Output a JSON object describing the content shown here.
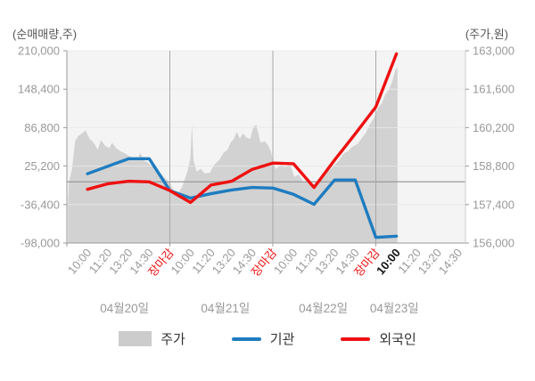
{
  "chart_data": {
    "type": "area+line",
    "title": "",
    "left_axis_label": "(순매매량,주)",
    "right_axis_label": "(주가,원)",
    "left_axis_ticks": [
      210000,
      148400,
      86800,
      25200,
      -36400,
      -98000
    ],
    "right_axis_ticks": [
      163000,
      161600,
      160200,
      158800,
      157400,
      156000
    ],
    "left_axis_range": [
      -98000,
      210000
    ],
    "right_axis_range": [
      156000,
      163000
    ],
    "grid": true,
    "legend_position": "bottom",
    "x_tick_labels": [
      {
        "label": "10:00",
        "slot": 1
      },
      {
        "label": "11:20",
        "slot": 2
      },
      {
        "label": "13:20",
        "slot": 3
      },
      {
        "label": "14:30",
        "slot": 4
      },
      {
        "label": "장마감",
        "slot": 5,
        "color": "#ee1111"
      },
      {
        "label": "10:00",
        "slot": 6
      },
      {
        "label": "11:20",
        "slot": 7
      },
      {
        "label": "13:20",
        "slot": 8
      },
      {
        "label": "14:30",
        "slot": 9
      },
      {
        "label": "장마감",
        "slot": 10,
        "color": "#ee1111"
      },
      {
        "label": "10:00",
        "slot": 11
      },
      {
        "label": "11:20",
        "slot": 12
      },
      {
        "label": "13:20",
        "slot": 13
      },
      {
        "label": "14:30",
        "slot": 14
      },
      {
        "label": "장마감",
        "slot": 15,
        "color": "#ee1111"
      },
      {
        "label": "10:00",
        "slot": 16,
        "color": "#111111",
        "bold": true
      },
      {
        "label": "11:20",
        "slot": 17
      },
      {
        "label": "13:20",
        "slot": 18
      },
      {
        "label": "14:30",
        "slot": 19
      }
    ],
    "day_labels": [
      {
        "label": "04월20일",
        "center_slot": 2.8
      },
      {
        "label": "04월21일",
        "center_slot": 7.7
      },
      {
        "label": "04월22일",
        "center_slot": 12.45
      },
      {
        "label": "04월23일",
        "center_slot": 15.9
      }
    ],
    "day_separator_slots": [
      5,
      10,
      15
    ],
    "series": [
      {
        "name": "주가",
        "type": "area",
        "axis": "right",
        "color": "#d2d2d2",
        "points": [
          [
            0.05,
            157300
          ],
          [
            0.1,
            158200
          ],
          [
            0.25,
            158700
          ],
          [
            0.4,
            159700
          ],
          [
            0.55,
            159900
          ],
          [
            0.75,
            160000
          ],
          [
            0.9,
            160100
          ],
          [
            1.1,
            159800
          ],
          [
            1.3,
            159650
          ],
          [
            1.5,
            159400
          ],
          [
            1.65,
            159750
          ],
          [
            1.85,
            159550
          ],
          [
            2.05,
            159450
          ],
          [
            2.2,
            159650
          ],
          [
            2.4,
            159450
          ],
          [
            2.6,
            159340
          ],
          [
            2.8,
            159270
          ],
          [
            3.0,
            159180
          ],
          [
            3.25,
            159080
          ],
          [
            3.45,
            159000
          ],
          [
            3.55,
            159300
          ],
          [
            3.75,
            159000
          ],
          [
            3.95,
            158920
          ],
          [
            4.1,
            158820
          ],
          [
            4.35,
            158690
          ],
          [
            4.55,
            158530
          ],
          [
            4.75,
            158370
          ],
          [
            5.0,
            158200
          ],
          [
            5.2,
            157880
          ],
          [
            5.4,
            157800
          ],
          [
            5.6,
            158050
          ],
          [
            5.85,
            158600
          ],
          [
            6.0,
            159100
          ],
          [
            6.07,
            160350
          ],
          [
            6.15,
            159000
          ],
          [
            6.3,
            158600
          ],
          [
            6.5,
            158700
          ],
          [
            6.7,
            158530
          ],
          [
            6.95,
            158560
          ],
          [
            7.15,
            158850
          ],
          [
            7.4,
            159020
          ],
          [
            7.6,
            159280
          ],
          [
            7.8,
            159400
          ],
          [
            7.95,
            159660
          ],
          [
            8.1,
            159790
          ],
          [
            8.25,
            160050
          ],
          [
            8.4,
            159800
          ],
          [
            8.55,
            160000
          ],
          [
            8.7,
            159850
          ],
          [
            8.9,
            159790
          ],
          [
            9.05,
            160230
          ],
          [
            9.2,
            160300
          ],
          [
            9.4,
            159660
          ],
          [
            9.6,
            159700
          ],
          [
            9.75,
            159590
          ],
          [
            9.9,
            159340
          ],
          [
            10.0,
            159000
          ],
          [
            10.15,
            158700
          ],
          [
            10.4,
            158850
          ],
          [
            10.6,
            158760
          ],
          [
            10.85,
            158850
          ],
          [
            11.05,
            158400
          ],
          [
            11.25,
            158500
          ],
          [
            11.5,
            158200
          ],
          [
            11.7,
            158300
          ],
          [
            11.9,
            158100
          ],
          [
            12.1,
            158200
          ],
          [
            12.35,
            158400
          ],
          [
            12.55,
            158530
          ],
          [
            12.8,
            158700
          ],
          [
            13.0,
            158850
          ],
          [
            13.2,
            159000
          ],
          [
            13.45,
            159270
          ],
          [
            13.65,
            159340
          ],
          [
            13.85,
            159500
          ],
          [
            14.1,
            159600
          ],
          [
            14.3,
            159800
          ],
          [
            14.5,
            160000
          ],
          [
            14.7,
            160300
          ],
          [
            14.95,
            160600
          ],
          [
            15.1,
            160900
          ],
          [
            15.3,
            161100
          ],
          [
            15.45,
            161400
          ],
          [
            15.65,
            161600
          ],
          [
            15.8,
            161900
          ],
          [
            15.95,
            162300
          ],
          [
            16.05,
            162400
          ]
        ]
      },
      {
        "name": "기관",
        "type": "line",
        "axis": "left",
        "color": "#1e7cc0",
        "start_slot": 1,
        "values": [
          13000,
          25000,
          37000,
          37000,
          -14000,
          -26000,
          -19000,
          -13000,
          -9000,
          -10000,
          -20000,
          -36000,
          3000,
          3000,
          -89000,
          -87000
        ]
      },
      {
        "name": "외국인",
        "type": "line",
        "axis": "left",
        "color": "#ee1111",
        "start_slot": 1,
        "values": [
          -12000,
          -3000,
          1000,
          0,
          -14000,
          -33000,
          -5000,
          1000,
          20000,
          30000,
          29000,
          -9000,
          35000,
          77000,
          120000,
          205000
        ]
      }
    ],
    "colors": {
      "plot_bg": "#f4f4f4",
      "grid": "#dedede",
      "grid_over_fill": "rgba(255,255,255,0.45)",
      "zero_line": "#9a9a9a",
      "separator": "#a8a8a8",
      "axis": "#999999",
      "right_border": "#cccccc",
      "tick_label": "#999999",
      "day_label": "#999999",
      "price_fill": "#d2d2d2",
      "institution": "#1e7cc0",
      "foreigner": "#ee1111",
      "legend_text": "#333333",
      "legend_area_swatch": "#cccccc"
    }
  }
}
